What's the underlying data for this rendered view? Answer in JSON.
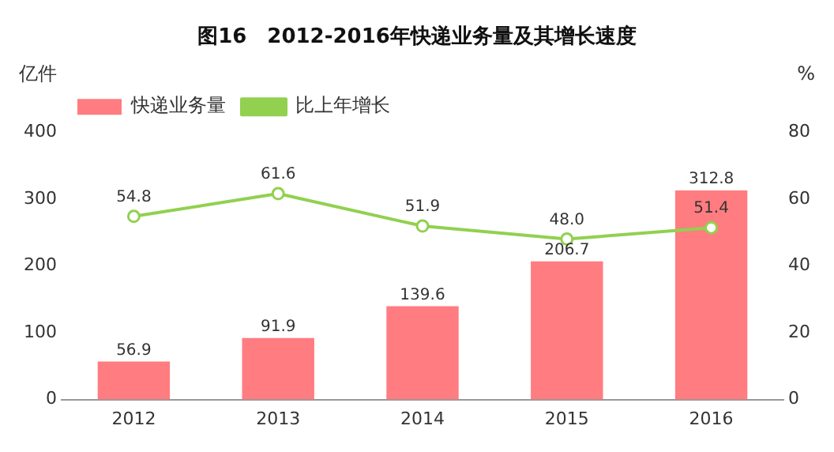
{
  "chart_data": {
    "type": "bar",
    "title": "图16　2012-2016年快递业务量及其增长速度",
    "ylabel": "亿件",
    "y2label": "%",
    "categories": [
      "2012",
      "2013",
      "2014",
      "2015",
      "2016"
    ],
    "series": [
      {
        "name": "快递业务量",
        "color": "#ff7c80",
        "values": [
          56.9,
          91.9,
          139.6,
          206.7,
          312.8
        ],
        "value_labels": [
          "56.9",
          "91.9",
          "139.6",
          "206.7",
          "312.8"
        ]
      },
      {
        "name": "比上年增长",
        "type": "line",
        "axis": "y2",
        "color": "#92d050",
        "marker": "circle",
        "values": [
          54.8,
          61.6,
          51.9,
          48.0,
          51.4
        ],
        "value_labels": [
          "54.8",
          "61.6",
          "51.9",
          "48.0",
          "51.4"
        ]
      }
    ],
    "ylim": [
      0,
      400
    ],
    "yticks": [
      0,
      100,
      200,
      300,
      400
    ],
    "y2lim": [
      0,
      80
    ],
    "y2ticks": [
      0,
      20,
      40,
      60,
      80
    ],
    "grid": false,
    "legend": "top left"
  }
}
